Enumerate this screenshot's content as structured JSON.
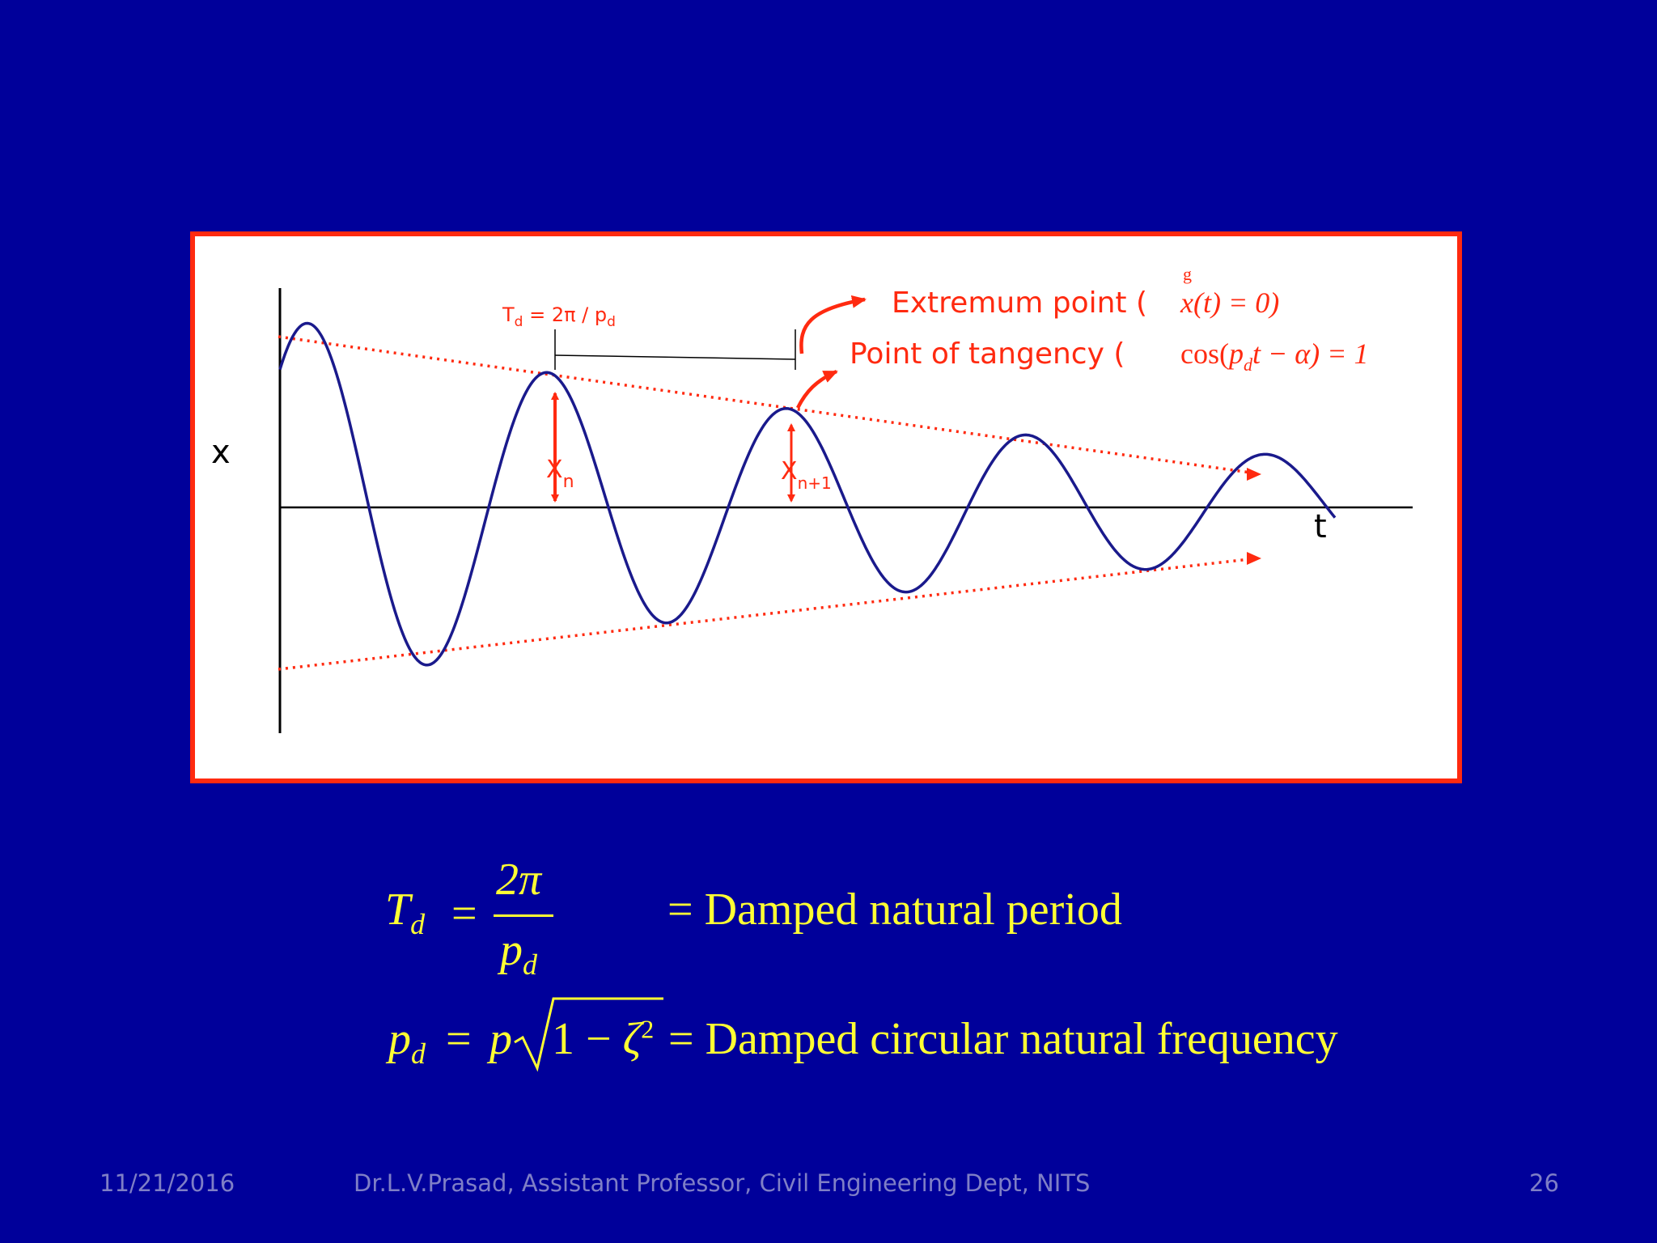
{
  "diagram": {
    "axis_x_label": "x",
    "axis_t_label": "t",
    "period": {
      "T": "T",
      "T_sub": "d",
      "eq": " = 2π / p",
      "p_sub": "d"
    },
    "amp_n": {
      "X": "X",
      "sub": "n"
    },
    "amp_n1": {
      "X": "X",
      "sub": "n+1"
    },
    "extremum_label": "Extremum point (",
    "extremum_dot": "g",
    "extremum_formula": "x(t) = 0)",
    "tangency_label": "Point of tangency  (",
    "tangency_formula": {
      "pre": "cos(",
      "p": "p",
      "sub": "d",
      "post": "t − α) = 1"
    }
  },
  "equations": {
    "eq1": {
      "lhs": "T",
      "lhs_sub": "d",
      "equals": "=",
      "num": "2π",
      "den": "p",
      "den_sub": "d",
      "rhs": "= Damped  natural  period"
    },
    "eq2": {
      "lhs": "p",
      "lhs_sub": "d",
      "equals": "=",
      "p": "p",
      "radicand_1": "1 − ",
      "zeta": "ζ",
      "exp": "2",
      "rhs": "= Damped  circular natural  frequency"
    }
  },
  "footer": {
    "date": "11/21/2016",
    "author": "Dr.L.V.Prasad, Assistant Professor, Civil Engineering Dept, NITS",
    "page": "26"
  },
  "colors": {
    "background": "#00009a",
    "frame": "#ff2a10",
    "curve": "#1a1a8c",
    "annotation": "#ff2a10",
    "equation_text": "#ffff33",
    "footer_text": "#7f7fc6"
  }
}
